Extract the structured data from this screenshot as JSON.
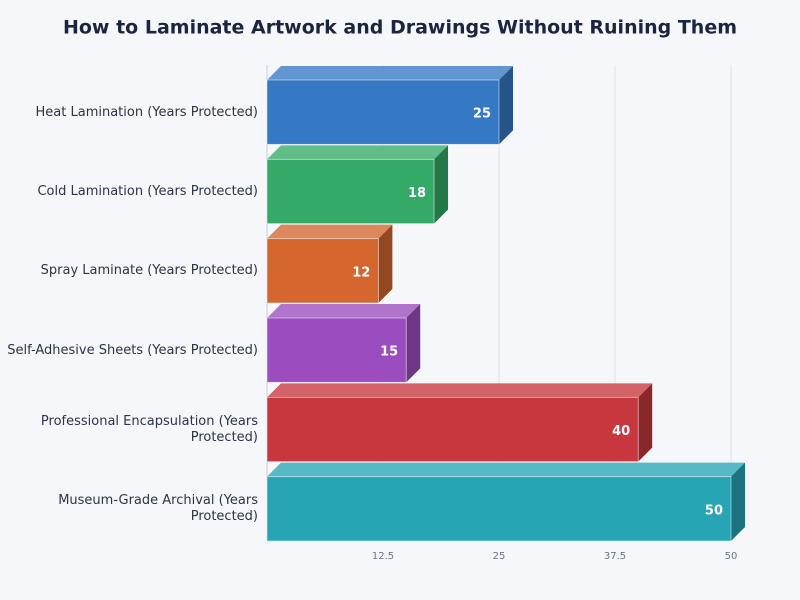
{
  "chart_data": {
    "type": "bar3d",
    "orientation": "horizontal",
    "title": "How to Laminate Artwork and Drawings Without Ruining Them",
    "categories": [
      "Heat Lamination (Years Protected)",
      "Cold Lamination (Years Protected)",
      "Spray Laminate (Years Protected)",
      "Self-Adhesive Sheets (Years Protected)",
      "Professional Encapsulation (Years Protected)",
      "Museum-Grade Archival (Years Protected)"
    ],
    "values": [
      25,
      18,
      12,
      15,
      40,
      50
    ],
    "colors": [
      "#3578c4",
      "#34aa66",
      "#d4662e",
      "#9b4dbf",
      "#c7373d",
      "#27a5b5"
    ],
    "xlim": [
      0,
      50
    ],
    "xticks": [
      12.5,
      25,
      37.5,
      50
    ],
    "grid": true
  }
}
